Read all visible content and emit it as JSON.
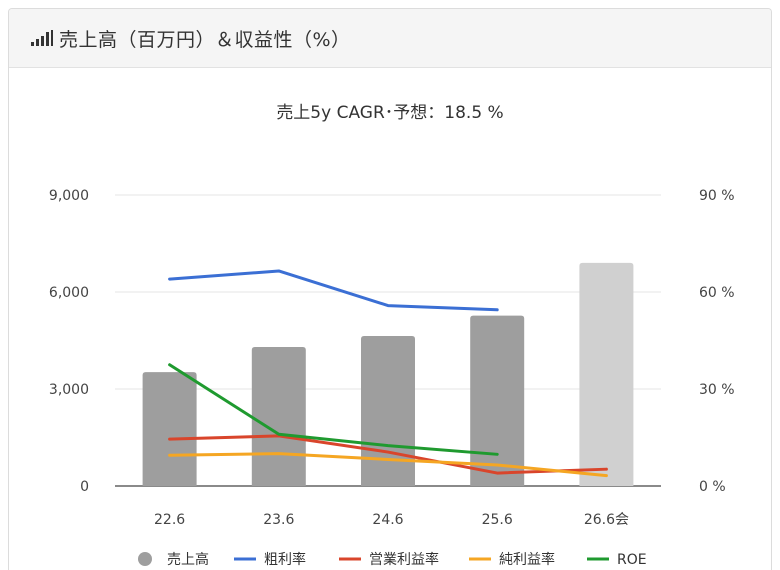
{
  "panel": {
    "title": "売上高（百万円）＆収益性（%）",
    "icon": "bar-signal-icon"
  },
  "chart_data": {
    "type": "bar",
    "title": "売上5y CAGR･予想：18.5 %",
    "categories": [
      "22.6",
      "23.6",
      "24.6",
      "25.6",
      "26.6会"
    ],
    "left_axis": {
      "ylim": [
        0,
        9000
      ],
      "ticks": [
        0,
        3000,
        6000,
        9000
      ],
      "tick_labels": [
        "0",
        "3,000",
        "6,000",
        "9,000"
      ]
    },
    "right_axis": {
      "ylim": [
        0,
        90
      ],
      "ticks": [
        0,
        30,
        60,
        90
      ],
      "tick_labels": [
        "0 %",
        "30 %",
        "60 %",
        "90 %"
      ]
    },
    "grid": true,
    "legend_position": "bottom",
    "bars": {
      "name": "売上高",
      "values": [
        3520,
        4300,
        4640,
        5270,
        6900
      ],
      "colors": [
        "#9e9e9e",
        "#9e9e9e",
        "#9e9e9e",
        "#9e9e9e",
        "#d0d0d0"
      ]
    },
    "series": [
      {
        "name": "粗利率",
        "color": "#3b6fd4",
        "values": [
          64,
          66.5,
          55.8,
          54.5,
          null
        ]
      },
      {
        "name": "営業利益率",
        "color": "#d9452b",
        "values": [
          14.5,
          15.5,
          10.5,
          4,
          5.2
        ]
      },
      {
        "name": "純利益率",
        "color": "#f5a623",
        "values": [
          9.5,
          10,
          8.2,
          6.5,
          3.2
        ]
      },
      {
        "name": "ROE",
        "color": "#1f9a2f",
        "values": [
          37.5,
          16,
          12.5,
          9.8,
          null
        ]
      }
    ]
  }
}
